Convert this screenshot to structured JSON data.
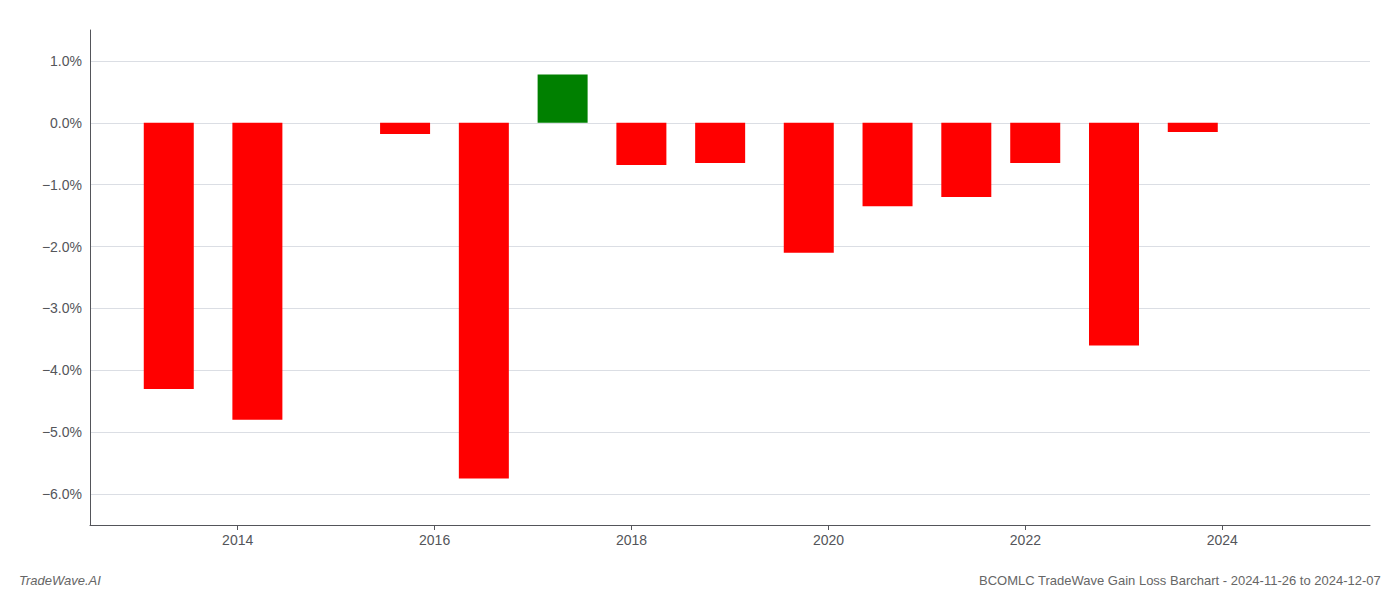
{
  "chart_data": {
    "type": "bar",
    "title": "BCOMLC TradeWave Gain Loss Barchart - 2024-11-26 to 2024-12-07",
    "annotations": [
      "TradeWave.AI"
    ],
    "x": [
      2013.3,
      2014.2,
      2015.7,
      2016.5,
      2017.3,
      2018.1,
      2018.9,
      2019.8,
      2020.6,
      2021.4,
      2022.1,
      2022.9,
      2023.7
    ],
    "values": [
      -4.3,
      -4.8,
      -0.18,
      -5.75,
      0.78,
      -0.68,
      -0.65,
      -2.1,
      -1.35,
      -1.2,
      -0.65,
      -3.6,
      -0.15
    ],
    "colors": [
      "#ff0000",
      "#ff0000",
      "#ff0000",
      "#ff0000",
      "#008000",
      "#ff0000",
      "#ff0000",
      "#ff0000",
      "#ff0000",
      "#ff0000",
      "#ff0000",
      "#ff0000",
      "#ff0000"
    ],
    "xlim": [
      2012.5,
      2025.5
    ],
    "xticks": [
      2014,
      2016,
      2018,
      2020,
      2022,
      2024
    ],
    "ylim": [
      -6.5,
      1.5
    ],
    "yticks": [
      {
        "value": -6.0,
        "label": "−6.0%"
      },
      {
        "value": -5.0,
        "label": "−5.0%"
      },
      {
        "value": -4.0,
        "label": "−4.0%"
      },
      {
        "value": -3.0,
        "label": "−3.0%"
      },
      {
        "value": -2.0,
        "label": "−2.0%"
      },
      {
        "value": -1.0,
        "label": "−1.0%"
      },
      {
        "value": 0.0,
        "label": "0.0%"
      },
      {
        "value": 1.0,
        "label": "1.0%"
      }
    ],
    "grid": true
  }
}
